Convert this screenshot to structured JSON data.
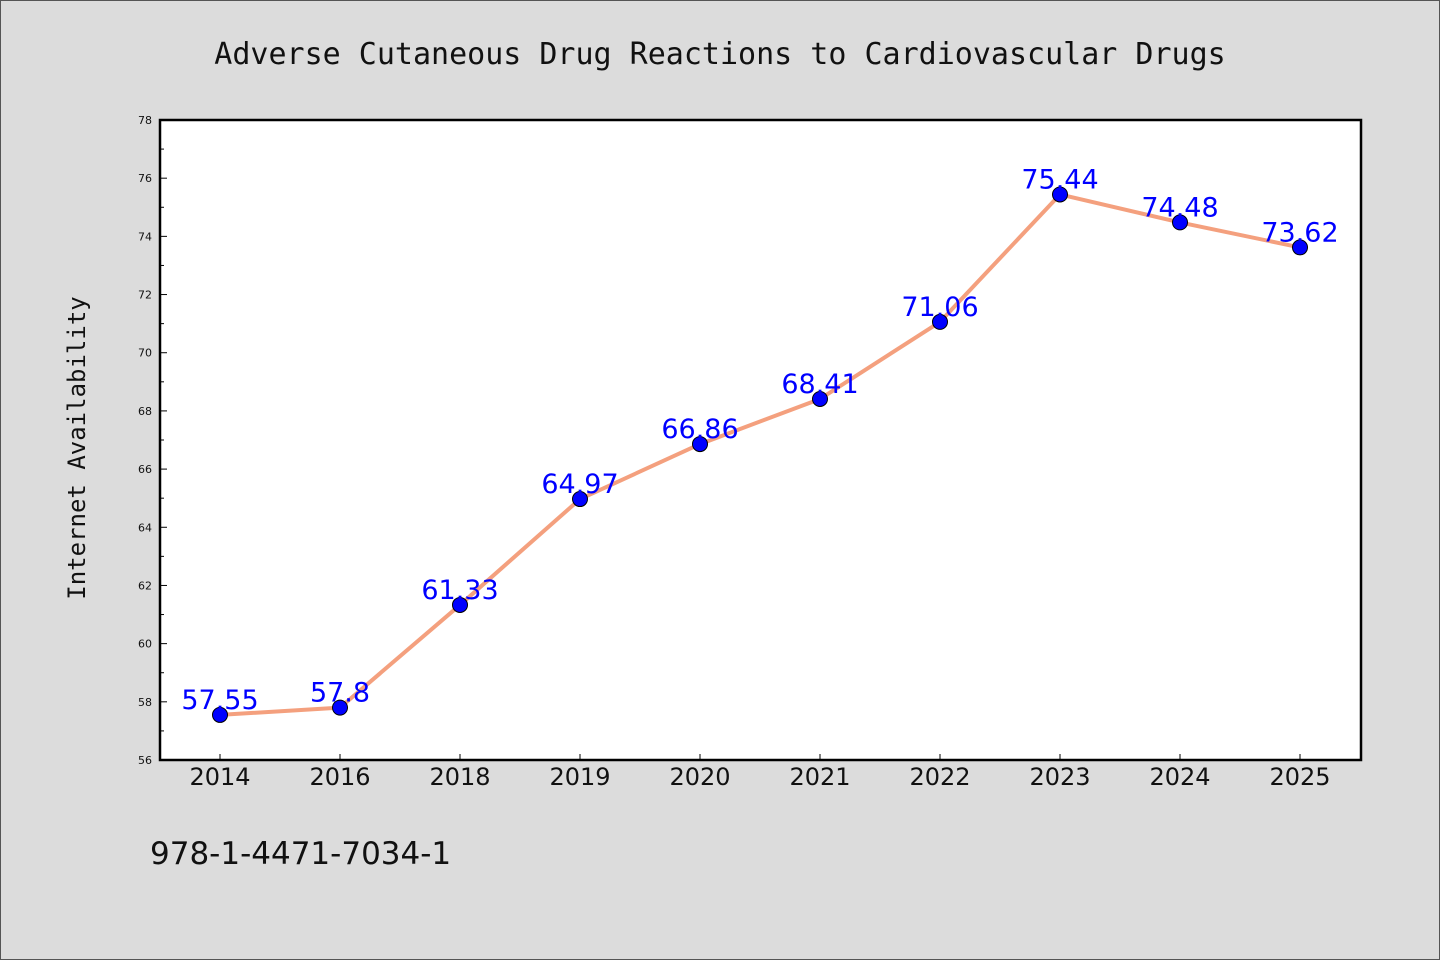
{
  "chart_data": {
    "type": "line",
    "title": "Adverse Cutaneous Drug Reactions to Cardiovascular Drugs",
    "xlabel": "",
    "ylabel": "Internet Availability",
    "categories": [
      "2014",
      "2016",
      "2018",
      "2019",
      "2020",
      "2021",
      "2022",
      "2023",
      "2024",
      "2025"
    ],
    "series": [
      {
        "values": [
          57.55,
          57.8,
          61.33,
          64.97,
          66.86,
          68.41,
          71.06,
          75.44,
          74.48,
          73.62
        ],
        "data_labels": [
          "57.55",
          "57.8",
          "61.33",
          "64.97",
          "66.86",
          "68.41",
          "71.06",
          "75.44",
          "74.48",
          "73.62"
        ],
        "line_color": "#f4a07e",
        "marker_color": "#0000ff",
        "label_color": "#0000ff"
      }
    ],
    "ylim": [
      56,
      78
    ],
    "yticks": [
      "56",
      "58",
      "60",
      "62",
      "64",
      "66",
      "68",
      "70",
      "72",
      "74",
      "76",
      "78"
    ],
    "grid": false,
    "legend": "none"
  },
  "footer": {
    "isbn": "978-1-4471-7034-1"
  },
  "colors": {
    "background": "#dcdcdc",
    "plot_background": "#ffffff",
    "line": "#f4a07e",
    "markers": "#0000ff"
  }
}
